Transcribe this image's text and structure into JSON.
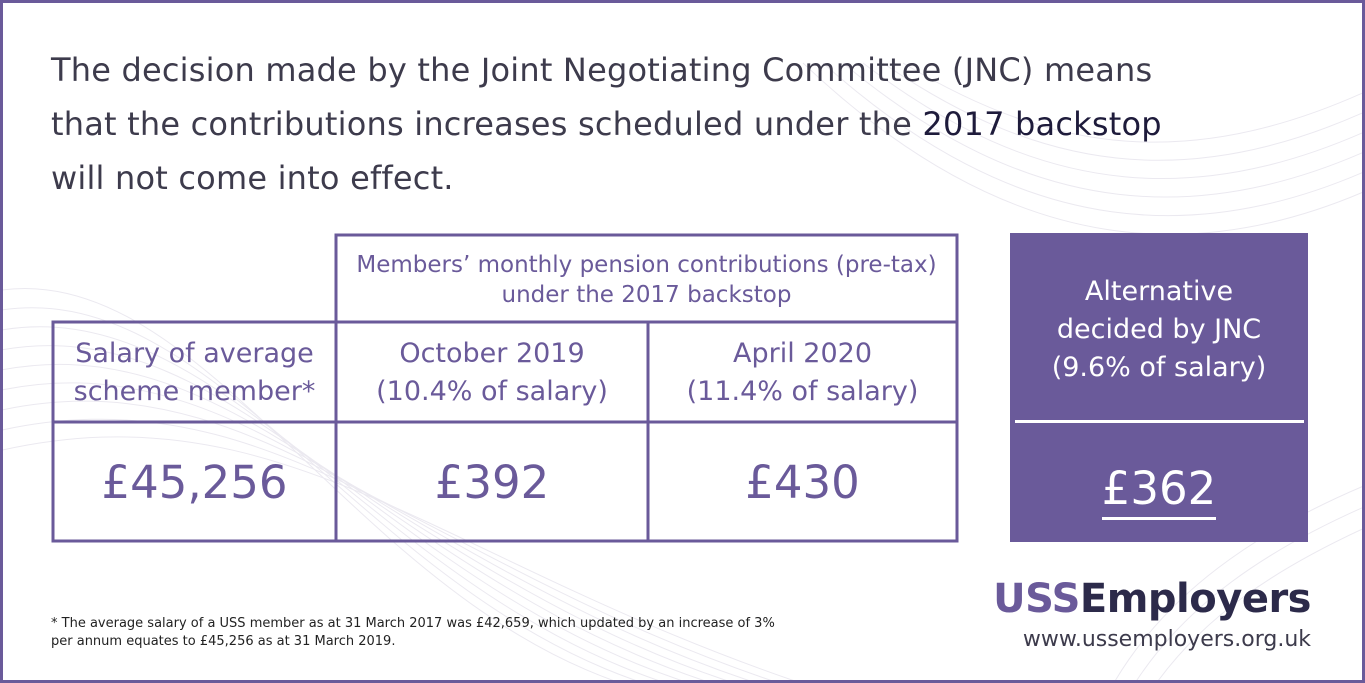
{
  "intro": {
    "before": "The decision made by the Joint Negotiating Committee (JNC) means that the contributions increases scheduled under the ",
    "emphasis": "2017 backstop",
    "after": " will not come into effect."
  },
  "table": {
    "group_header": {
      "line1": "Members’ monthly pension contributions (pre-tax)",
      "line2_prefix": "under the ",
      "line2_emphasis": "2017 backstop"
    },
    "columns": [
      {
        "line1": "Salary of average",
        "line2": "scheme member*"
      },
      {
        "line1": "October 2019",
        "line2": "(10.4% of salary)"
      },
      {
        "line1": "April 2020",
        "line2": "(11.4% of salary)"
      }
    ],
    "values": [
      "£45,256",
      "£392",
      "£430"
    ]
  },
  "alternative": {
    "line1": "Alternative",
    "line2": "decided by JNC",
    "line3": "(9.6% of salary)",
    "value": "£362"
  },
  "footnote": {
    "line1": "* The average salary of a USS member as at 31 March 2017 was £42,659, which updated by an increase of 3%",
    "line2": "per annum equates to £45,256 as at 31 March 2019."
  },
  "brand": {
    "name_part1": "USS",
    "name_part2": "Employers",
    "url": "www.ussemployers.org.uk"
  },
  "colors": {
    "brand_purple": "#6a5a9a",
    "dark_navy": "#2c2a4a",
    "text_gray": "#3d3b4c"
  }
}
